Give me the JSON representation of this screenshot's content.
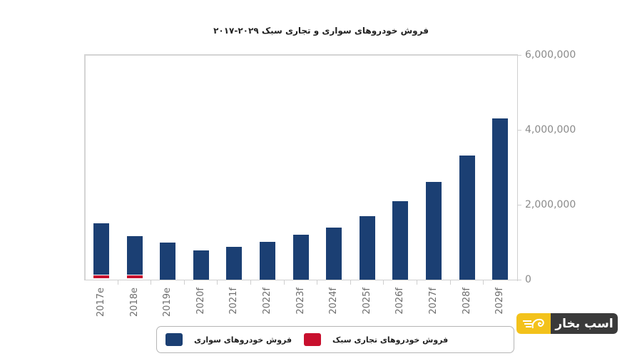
{
  "title": "فروش خودروهای سواری و تجاری سبک ۲۰۲۹-۲۰۱۷",
  "legend": {
    "passenger_label": "فروش خودروهای سواری",
    "light_commercial_label": "فروش خودروهای تجاری سبک"
  },
  "logo": {
    "text": "اسب بخار",
    "icon": "horse-head-icon",
    "yellow": "#f3c21b",
    "dark": "#3a3a3a"
  },
  "colors": {
    "passenger": "#1b3f73",
    "light_commercial": "#c8102e"
  },
  "y_axis": {
    "ticks": [
      "0",
      "2,000,000",
      "4,000,000",
      "6,000,000"
    ]
  },
  "chart_data": {
    "type": "bar",
    "stacked": true,
    "title": "فروش خودروهای سواری و تجاری سبک ۲۰۲۹-۲۰۱۷",
    "xlabel": "",
    "ylabel": "",
    "ylim": [
      0,
      6000000
    ],
    "y_axis_position": "right",
    "legend_position": "bottom",
    "grid": false,
    "categories": [
      "2017e",
      "2018e",
      "2019e",
      "2020f",
      "2021f",
      "2022f",
      "2023f",
      "2024f",
      "2025f",
      "2026f",
      "2027f",
      "2028f",
      "2029f"
    ],
    "series": [
      {
        "name": "فروش خودروهای سواری",
        "color": "#1b3f73",
        "values": [
          1500000,
          1160000,
          990000,
          780000,
          880000,
          1010000,
          1200000,
          1390000,
          1700000,
          2100000,
          2610000,
          3310000,
          4300000
        ]
      },
      {
        "name": "فروش خودروهای تجاری سبک",
        "color": "#c8102e",
        "values": [
          80000,
          80000,
          0,
          0,
          0,
          0,
          0,
          0,
          0,
          0,
          0,
          0,
          0
        ]
      }
    ]
  }
}
